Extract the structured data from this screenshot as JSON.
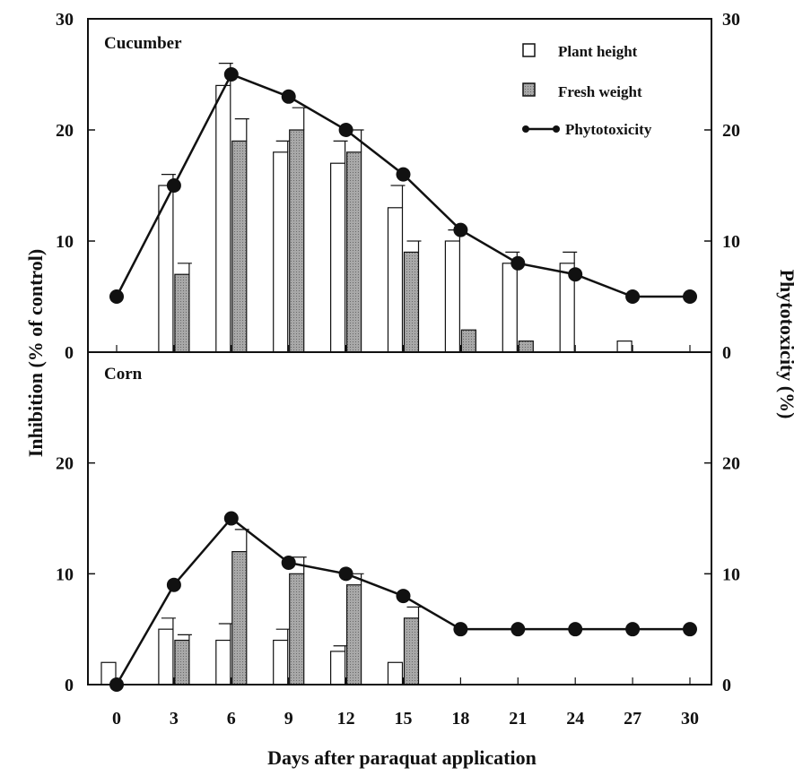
{
  "colors": {
    "ink": "#111111",
    "fresh_bar": "#9a9a9a",
    "height_bar": "#ffffff"
  },
  "chart_data": {
    "type": "bar",
    "xlabel": "Days after paraquat application",
    "ylabel_left": "Inhibition (% of control)",
    "ylabel_right": "Phytotoxicity (%)",
    "x_ticks": [
      0,
      3,
      6,
      9,
      12,
      15,
      18,
      21,
      24,
      27,
      30
    ],
    "legend": {
      "placement": "top-right",
      "items": [
        {
          "label": "Plant height",
          "marker": "open-bar"
        },
        {
          "label": "Fresh weight",
          "marker": "gray-bar"
        },
        {
          "label": "Phytotoxicity",
          "marker": "line-dot"
        }
      ]
    },
    "panels": [
      {
        "title": "Cucumber",
        "ylim": [
          0,
          30
        ],
        "y_ticks": [
          0,
          10,
          20,
          30
        ],
        "plant_height": [
          {
            "x": 3,
            "y": 15,
            "err": 1
          },
          {
            "x": 6,
            "y": 24,
            "err": 2
          },
          {
            "x": 9,
            "y": 18,
            "err": 1
          },
          {
            "x": 12,
            "y": 17,
            "err": 2
          },
          {
            "x": 15,
            "y": 13,
            "err": 2
          },
          {
            "x": 18,
            "y": 10,
            "err": 1
          },
          {
            "x": 21,
            "y": 8,
            "err": 1
          },
          {
            "x": 24,
            "y": 8,
            "err": 1
          },
          {
            "x": 27,
            "y": 1,
            "err": 0
          }
        ],
        "fresh_weight": [
          {
            "x": 3,
            "y": 7,
            "err": 1
          },
          {
            "x": 6,
            "y": 19,
            "err": 2
          },
          {
            "x": 9,
            "y": 20,
            "err": 2
          },
          {
            "x": 12,
            "y": 18,
            "err": 2
          },
          {
            "x": 15,
            "y": 9,
            "err": 1
          },
          {
            "x": 18,
            "y": 2,
            "err": 0
          },
          {
            "x": 21,
            "y": 1,
            "err": 0
          }
        ],
        "phytotoxicity": [
          {
            "x": 0,
            "y": 5
          },
          {
            "x": 3,
            "y": 15
          },
          {
            "x": 6,
            "y": 25
          },
          {
            "x": 9,
            "y": 23
          },
          {
            "x": 12,
            "y": 20
          },
          {
            "x": 15,
            "y": 16
          },
          {
            "x": 18,
            "y": 11
          },
          {
            "x": 21,
            "y": 8
          },
          {
            "x": 24,
            "y": 7
          },
          {
            "x": 27,
            "y": 5
          },
          {
            "x": 30,
            "y": 5
          }
        ]
      },
      {
        "title": "Corn",
        "ylim": [
          0,
          30
        ],
        "y_ticks": [
          0,
          10,
          20
        ],
        "plant_height": [
          {
            "x": 0,
            "y": 2,
            "err": 0
          },
          {
            "x": 3,
            "y": 5,
            "err": 1
          },
          {
            "x": 6,
            "y": 4,
            "err": 1.5
          },
          {
            "x": 9,
            "y": 4,
            "err": 1
          },
          {
            "x": 12,
            "y": 3,
            "err": 0.5
          },
          {
            "x": 15,
            "y": 2,
            "err": 0
          }
        ],
        "fresh_weight": [
          {
            "x": 3,
            "y": 4,
            "err": 0.5
          },
          {
            "x": 6,
            "y": 12,
            "err": 2
          },
          {
            "x": 9,
            "y": 10,
            "err": 1.5
          },
          {
            "x": 12,
            "y": 9,
            "err": 1
          },
          {
            "x": 15,
            "y": 6,
            "err": 1
          }
        ],
        "phytotoxicity": [
          {
            "x": 0,
            "y": 0
          },
          {
            "x": 3,
            "y": 9
          },
          {
            "x": 6,
            "y": 15
          },
          {
            "x": 9,
            "y": 11
          },
          {
            "x": 12,
            "y": 10
          },
          {
            "x": 15,
            "y": 8
          },
          {
            "x": 18,
            "y": 5
          },
          {
            "x": 21,
            "y": 5
          },
          {
            "x": 24,
            "y": 5
          },
          {
            "x": 27,
            "y": 5
          },
          {
            "x": 30,
            "y": 5
          }
        ]
      }
    ]
  }
}
